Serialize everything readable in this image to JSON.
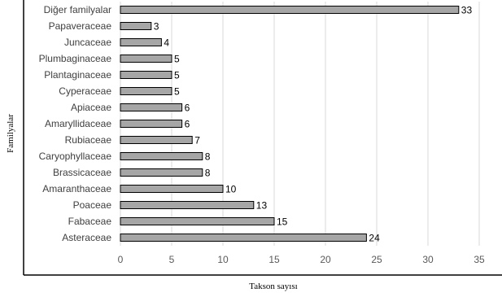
{
  "chart_data": {
    "type": "bar",
    "orientation": "horizontal",
    "categories": [
      "Diğer familyalar",
      "Papaveraceae",
      "Juncaceae",
      "Plumbaginaceae",
      "Plantaginaceae",
      "Cyperaceae",
      "Apiaceae",
      "Amaryllidaceae",
      "Rubiaceae",
      "Caryophyllaceae",
      "Brassicaceae",
      "Amaranthaceae",
      "Poaceae",
      "Fabaceae",
      "Asteraceae"
    ],
    "values": [
      33,
      3,
      4,
      5,
      5,
      5,
      6,
      6,
      7,
      8,
      8,
      10,
      13,
      15,
      24
    ],
    "xlabel": "Takson sayısı",
    "ylabel": "Familyalar",
    "xlim": [
      0,
      35
    ],
    "xticks": [
      0,
      5,
      10,
      15,
      20,
      25,
      30,
      35
    ],
    "grid": "vertical",
    "legend": "none",
    "bar_color": "#a6a6a6",
    "bar_edge_color": "#000000",
    "grid_color": "#d9d9d9"
  }
}
